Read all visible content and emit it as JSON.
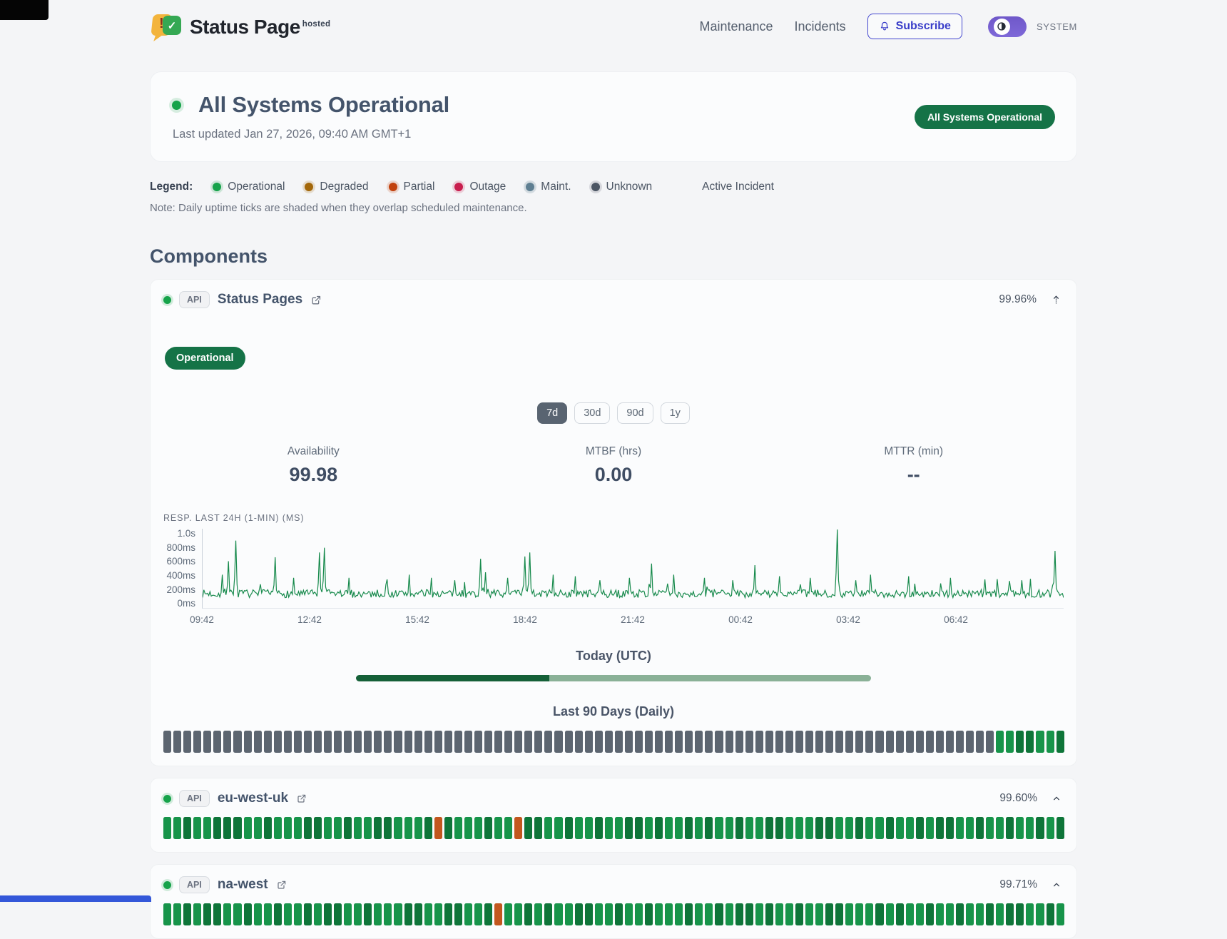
{
  "header": {
    "logo_title": "Status Page",
    "logo_superscript": "hosted",
    "nav": [
      "Maintenance",
      "Incidents"
    ],
    "subscribe_label": "Subscribe",
    "theme_mode_label": "SYSTEM"
  },
  "hero": {
    "status_title": "All Systems Operational",
    "last_updated": "Last updated Jan 27, 2026, 09:40 AM GMT+1",
    "badge": "All Systems Operational"
  },
  "legend": {
    "label": "Legend:",
    "items": [
      {
        "name": "Operational",
        "color": "#16a34a",
        "halo": "rgba(22,163,74,0.18)"
      },
      {
        "name": "Degraded",
        "color": "#a3670a",
        "halo": "rgba(163,103,10,0.18)"
      },
      {
        "name": "Partial",
        "color": "#c2410c",
        "halo": "rgba(194,65,12,0.18)"
      },
      {
        "name": "Outage",
        "color": "#c81e4e",
        "halo": "rgba(200,30,78,0.18)"
      },
      {
        "name": "Maint.",
        "color": "#5f7f92",
        "halo": "rgba(95,127,146,0.22)"
      },
      {
        "name": "Unknown",
        "color": "#4b5563",
        "halo": "rgba(75,85,99,0.18)"
      }
    ],
    "active_incident_label": "Active Incident",
    "note": "Note: Daily uptime ticks are shaded when they overlap scheduled maintenance."
  },
  "components_heading": "Components",
  "components": [
    {
      "badge": "API",
      "name": "Status Pages",
      "uptime": "99.96%",
      "status_badge": "Operational",
      "ranges": [
        "7d",
        "30d",
        "90d",
        "1y"
      ],
      "active_range": "7d",
      "stats": [
        {
          "label": "Availability",
          "value": "99.98"
        },
        {
          "label": "MTBF (hrs)",
          "value": "0.00"
        },
        {
          "label": "MTTR (min)",
          "value": "--"
        }
      ],
      "chart": {
        "type": "line",
        "label": "RESP. LAST 24H (1-MIN) (MS)",
        "y_ticks": [
          "1.0s",
          "800ms",
          "600ms",
          "400ms",
          "200ms",
          "0ms"
        ],
        "x_ticks": [
          "09:42",
          "12:42",
          "15:42",
          "18:42",
          "21:42",
          "00:42",
          "03:42",
          "06:42"
        ],
        "y_max_ms": 1000,
        "line_color": "#178a4c",
        "baseline": {
          "min": 130,
          "max": 230,
          "minor_spike_prob": 0.05,
          "minor_spike_max": 170
        },
        "spikes": [
          [
            0.023,
            420
          ],
          [
            0.03,
            590
          ],
          [
            0.038,
            850
          ],
          [
            0.084,
            640
          ],
          [
            0.105,
            380
          ],
          [
            0.135,
            700
          ],
          [
            0.141,
            760
          ],
          [
            0.17,
            380
          ],
          [
            0.214,
            360
          ],
          [
            0.24,
            420
          ],
          [
            0.266,
            380
          ],
          [
            0.293,
            350
          ],
          [
            0.323,
            620
          ],
          [
            0.329,
            450
          ],
          [
            0.354,
            380
          ],
          [
            0.374,
            650
          ],
          [
            0.38,
            700
          ],
          [
            0.407,
            420
          ],
          [
            0.433,
            400
          ],
          [
            0.461,
            350
          ],
          [
            0.495,
            380
          ],
          [
            0.522,
            560
          ],
          [
            0.547,
            420
          ],
          [
            0.583,
            380
          ],
          [
            0.616,
            350
          ],
          [
            0.641,
            540
          ],
          [
            0.67,
            400
          ],
          [
            0.705,
            380
          ],
          [
            0.737,
            990
          ],
          [
            0.776,
            420
          ],
          [
            0.82,
            400
          ],
          [
            0.868,
            380
          ],
          [
            0.908,
            360
          ],
          [
            0.952,
            350
          ],
          [
            0.99,
            720
          ]
        ]
      },
      "today_label": "Today (UTC)",
      "today_progress_pct": 37.5,
      "last90_label": "Last 90 Days (Daily)",
      "ticks": "uuuuuuuuuuuuuuuuuuuuuuuuuuuuuuuuuuuuuuuuuuuuuuuuuuuuuuuuuuuuuuuuuuuuuuuuuuuuuuuuuuuooddood"
    },
    {
      "badge": "API",
      "name": "eu-west-uk",
      "uptime": "99.60%",
      "ticks": "oodoodddoodoooddoodooddooodpdooodoopddoodoodooddodoododoodooddoooddoodoodoododdoodoodoodod"
    },
    {
      "badge": "API",
      "name": "na-west",
      "uptime": "99.71%",
      "ticks": "oododdoodoodoododdoodoooddooddoodpoododooddoodoodooodoododdodoodooddooododoodoodoododdoodo"
    }
  ],
  "colors": {
    "page_bg": "#f4f5f7",
    "card_bg": "#fbfcfd",
    "operational_green": "#16a34a",
    "badge_green": "#157347",
    "accent_indigo": "#4347cf",
    "toggle_purple": "#7a63d4",
    "tick_gray": "#5c6570",
    "tick_green": "#17944a",
    "tick_green_dark": "#0e7539",
    "tick_partial": "#c2571f",
    "progress_dark": "#156038",
    "progress_light": "#8ab197"
  }
}
